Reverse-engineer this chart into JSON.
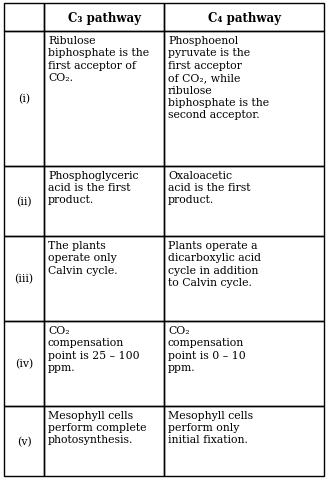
{
  "col_headers": [
    "",
    "C₃ pathway",
    "C₄ pathway"
  ],
  "rows": [
    {
      "label": "(i)",
      "c3": "Ribulose\nbiphosphate is the\nfirst acceptor of\nCO₂.",
      "c4": "Phosphoenol\npyruvate is the\nfirst acceptor\nof CO₂, while\nribulose\nbiphosphate is the\nsecond acceptor."
    },
    {
      "label": "(ii)",
      "c3": "Phosphoglyceric\nacid is the first\nproduct.",
      "c4": "Oxaloacetic\nacid is the first\nproduct."
    },
    {
      "label": "(iii)",
      "c3": "The plants\noperate only\nCalvin cycle.",
      "c4": "Plants operate a\ndicarboxylic acid\ncycle in addition\nto Calvin cycle."
    },
    {
      "label": "(iv)",
      "c3": "CO₂\ncompensation\npoint is 25 – 100\nppm.",
      "c4": "CO₂\ncompensation\npoint is 0 – 10\nppm."
    },
    {
      "label": "(v)",
      "c3": "Mesophyll cells\nperform complete\nphotosynthesis.",
      "c4": "Mesophyll cells\nperform only\ninitial fixation."
    }
  ],
  "bg_color": "#ffffff",
  "border_color": "#000000",
  "text_color": "#000000",
  "font_size": 7.8,
  "header_font_size": 8.5,
  "fig_width": 3.28,
  "fig_height": 4.81,
  "dpi": 100
}
